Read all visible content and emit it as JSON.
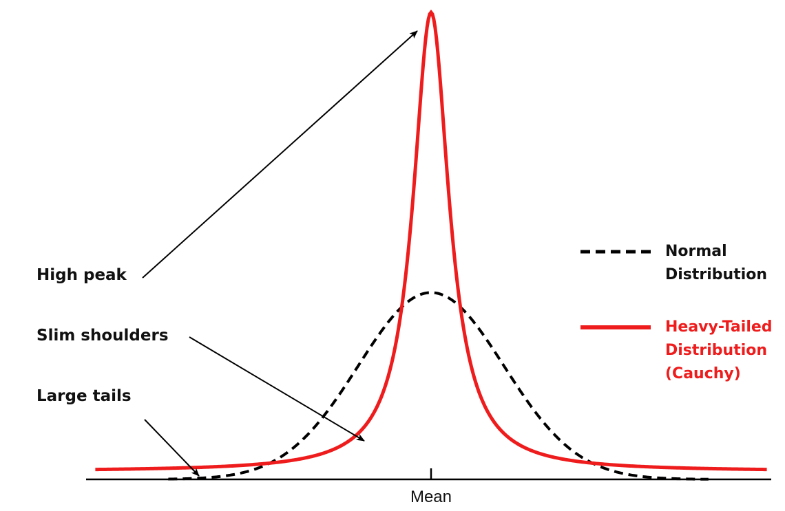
{
  "chart_data": {
    "type": "line",
    "title": "",
    "xlabel": "",
    "ylabel": "",
    "x_ticks": [
      {
        "x": 0,
        "label": "Mean"
      }
    ],
    "xlim": [
      -4.7,
      4.7
    ],
    "ylim": [
      0,
      1.02
    ],
    "grid": false,
    "legend": "right",
    "series": [
      {
        "name": "Normal Distribution",
        "style": "dashed",
        "color": "#000000",
        "function": "normal",
        "mean": 0,
        "sd": 1,
        "domain": [
          -3.6,
          3.8
        ],
        "peak_relative": 0.4
      },
      {
        "name": "Heavy-Tailed Distribution (Cauchy)",
        "style": "solid",
        "color": "#ee1c1c",
        "function": "cauchy",
        "location": 0,
        "scale": 0.3,
        "domain": [
          -4.6,
          4.6
        ],
        "peak_relative": 1.0,
        "tail_level": 0.017
      }
    ],
    "annotations": [
      {
        "text": "High peak",
        "points_to": "peak of heavy-tailed curve"
      },
      {
        "text": "Slim shoulders",
        "points_to": "shoulder of heavy-tailed curve"
      },
      {
        "text": "Large tails",
        "points_to": "left tail of heavy-tailed curve"
      }
    ]
  },
  "legend": {
    "normal_line1": "Normal",
    "normal_line2": "Distribution",
    "heavy_line1": "Heavy-Tailed",
    "heavy_line2": "Distribution",
    "heavy_line3": "(Cauchy)"
  },
  "annotations": {
    "high_peak": "High peak",
    "slim_shoulders": "Slim shoulders",
    "large_tails": "Large tails"
  },
  "colors": {
    "normal": "#000000",
    "heavy": "#ee1c1c",
    "axis": "#000000"
  }
}
